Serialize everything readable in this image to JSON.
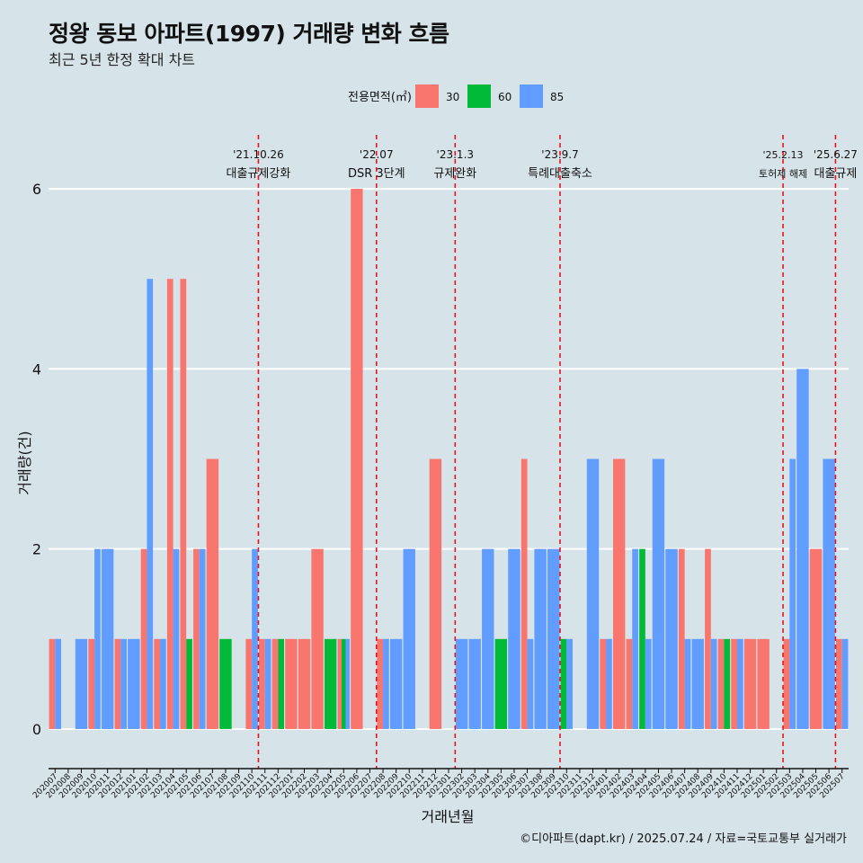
{
  "title": "정왕 동보 아파트(1997) 거래량 변화 흐름",
  "subtitle": "최근 5년 한정 확대 차트",
  "caption": "©디아파트(dapt.kr) / 2025.07.24 / 자료=국토교통부 실거래가",
  "colors": {
    "background": "#d6e4ea",
    "s30": "#f8766d",
    "s60": "#00ba38",
    "s85": "#619cff",
    "event_line": "#e8141c",
    "grid": "#ffffff"
  },
  "chart_data": {
    "type": "bar",
    "xlabel": "거래년월",
    "ylabel": "거래량(건)",
    "ylim": [
      -0.35,
      6.6
    ],
    "yticks": [
      0,
      2,
      4,
      6
    ],
    "grid": true,
    "legend": {
      "title": "전용면적(㎡)",
      "position": "top"
    },
    "categories": [
      "202007",
      "202008",
      "202009",
      "202010",
      "202011",
      "202012",
      "202101",
      "202102",
      "202103",
      "202104",
      "202105",
      "202106",
      "202107",
      "202108",
      "202109",
      "202110",
      "202111",
      "202112",
      "202201",
      "202202",
      "202203",
      "202204",
      "202205",
      "202206",
      "202207",
      "202208",
      "202209",
      "202210",
      "202211",
      "202212",
      "202301",
      "202302",
      "202303",
      "202304",
      "202305",
      "202306",
      "202307",
      "202308",
      "202309",
      "202310",
      "202311",
      "202312",
      "202401",
      "202402",
      "202403",
      "202404",
      "202405",
      "202406",
      "202407",
      "202408",
      "202409",
      "202410",
      "202411",
      "202412",
      "202501",
      "202502",
      "202503",
      "202504",
      "202505",
      "202506",
      "202507"
    ],
    "series": [
      {
        "name": "30",
        "values": [
          1,
          0,
          0,
          1,
          0,
          1,
          0,
          2,
          1,
          5,
          5,
          2,
          3,
          0,
          0,
          1,
          1,
          1,
          1,
          1,
          2,
          0,
          1,
          6,
          0,
          1,
          0,
          0,
          0,
          3,
          0,
          0,
          0,
          0,
          0,
          0,
          3,
          0,
          0,
          0,
          0,
          0,
          1,
          3,
          1,
          0,
          0,
          0,
          2,
          0,
          2,
          1,
          1,
          1,
          1,
          0,
          1,
          0,
          2,
          0,
          1
        ]
      },
      {
        "name": "60",
        "values": [
          0,
          0,
          0,
          0,
          0,
          0,
          0,
          0,
          0,
          0,
          1,
          0,
          0,
          1,
          0,
          0,
          0,
          1,
          0,
          0,
          0,
          1,
          1,
          0,
          0,
          0,
          0,
          0,
          0,
          0,
          0,
          0,
          0,
          0,
          1,
          0,
          0,
          0,
          0,
          1,
          0,
          0,
          0,
          0,
          0,
          2,
          0,
          0,
          0,
          0,
          0,
          1,
          0,
          0,
          0,
          0,
          0,
          0,
          0,
          0,
          0
        ]
      },
      {
        "name": "85",
        "values": [
          1,
          0,
          1,
          2,
          2,
          1,
          1,
          5,
          1,
          2,
          0,
          2,
          0,
          0,
          0,
          2,
          1,
          0,
          0,
          0,
          0,
          0,
          1,
          0,
          0,
          1,
          1,
          2,
          0,
          0,
          0,
          1,
          1,
          2,
          0,
          2,
          1,
          2,
          2,
          1,
          0,
          3,
          1,
          0,
          2,
          1,
          3,
          2,
          1,
          1,
          1,
          0,
          1,
          0,
          0,
          0,
          3,
          4,
          0,
          3,
          1
        ]
      }
    ],
    "events": [
      {
        "after": "202110",
        "date": "'21.10.26",
        "label": "대출규제강화"
      },
      {
        "after": "202207",
        "date": "'22.07",
        "label": "DSR 3단계"
      },
      {
        "after": "202301",
        "date": "'23.1.3",
        "label": "규제완화"
      },
      {
        "after": "202309",
        "date": "'23.9.7",
        "label": "특례대출축소"
      },
      {
        "after": "202502",
        "date": "'25.2.13",
        "label": "토허제 해제"
      },
      {
        "after": "202506",
        "date": "'25.6.27",
        "label": "대출규제"
      }
    ]
  }
}
